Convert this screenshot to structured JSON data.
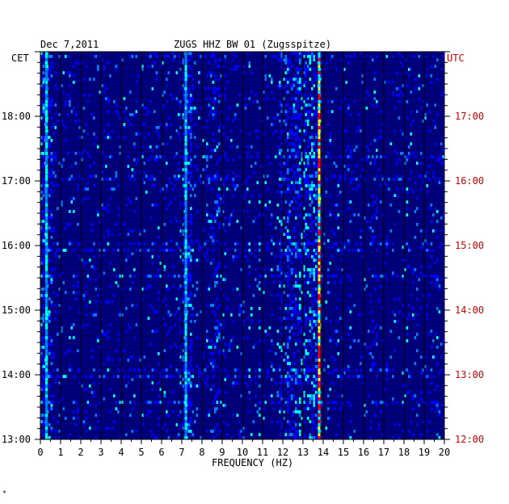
{
  "header": {
    "date": "Dec 7,2011",
    "station": "ZUGS HHZ BW 01 (Zugsspitze)",
    "left_tz": "CET",
    "right_tz": "UTC"
  },
  "footer": {
    "mark": "*"
  },
  "chart_data": {
    "type": "heatmap",
    "title": "ZUGS HHZ BW 01 (Zugsspitze)",
    "date": "Dec 7,2011",
    "xlabel": "FREQUENCY (HZ)",
    "xlim": [
      0,
      20
    ],
    "x_ticks": [
      "0",
      "1",
      "2",
      "3",
      "4",
      "5",
      "6",
      "7",
      "8",
      "9",
      "10",
      "11",
      "12",
      "13",
      "14",
      "15",
      "16",
      "17",
      "18",
      "19",
      "20"
    ],
    "y_left_label": "CET",
    "y_right_label": "UTC",
    "y_left_ticks": [
      "13:00",
      "14:00",
      "15:00",
      "16:00",
      "17:00",
      "18:00"
    ],
    "y_right_ticks": [
      "12:00",
      "13:00",
      "14:00",
      "15:00",
      "16:00",
      "17:00"
    ],
    "time_range_cet": [
      "13:00",
      "19:00"
    ],
    "colors": {
      "background": "#00007f",
      "gridline": "#000000",
      "right_axis_text": "#cc0000",
      "colormap": [
        "#00007f",
        "#0000ff",
        "#0080ff",
        "#00ffff",
        "#ffff00",
        "#ff0000"
      ]
    },
    "features": [
      {
        "frequency_hz": 13.8,
        "description": "persistent narrow-band line across full time span"
      },
      {
        "frequency_hz": 7.2,
        "description": "weaker persistent band"
      },
      {
        "frequency_hz": 0.3,
        "description": "low-frequency energy near left edge"
      }
    ]
  }
}
